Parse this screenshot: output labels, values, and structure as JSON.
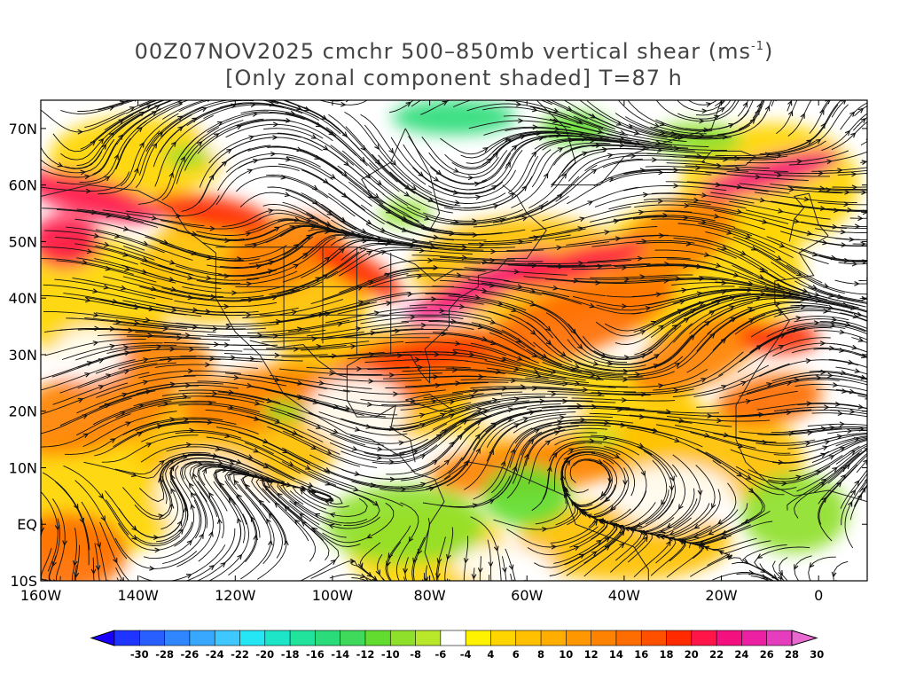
{
  "title": {
    "line1_main": "00Z07NOV2025 cmchr 500–850mb vertical shear (ms",
    "line1_sup": "-1",
    "line1_end": ")",
    "line2": "[Only zonal component shaded] T=87 h"
  },
  "map": {
    "lon_range": [
      -160,
      10
    ],
    "lat_range": [
      -10,
      75
    ],
    "lat_ticks": [
      {
        "value": 70,
        "label": "70N"
      },
      {
        "value": 60,
        "label": "60N"
      },
      {
        "value": 50,
        "label": "50N"
      },
      {
        "value": 40,
        "label": "40N"
      },
      {
        "value": 30,
        "label": "30N"
      },
      {
        "value": 20,
        "label": "20N"
      },
      {
        "value": 10,
        "label": "10N"
      },
      {
        "value": 0,
        "label": "EQ"
      },
      {
        "value": -10,
        "label": "10S"
      }
    ],
    "lon_ticks": [
      {
        "value": -160,
        "label": "160W"
      },
      {
        "value": -140,
        "label": "140W"
      },
      {
        "value": -120,
        "label": "120W"
      },
      {
        "value": -100,
        "label": "100W"
      },
      {
        "value": -80,
        "label": "80W"
      },
      {
        "value": -60,
        "label": "60W"
      },
      {
        "value": -40,
        "label": "40W"
      },
      {
        "value": -20,
        "label": "20W"
      },
      {
        "value": 0,
        "label": "0"
      }
    ],
    "shading": "zonal component of 500-850mb vertical shear",
    "overlay": "vertical shear streamlines"
  },
  "colorbar": {
    "labels": [
      "-30",
      "-28",
      "-26",
      "-24",
      "-22",
      "-20",
      "-18",
      "-16",
      "-14",
      "-12",
      "-10",
      "-8",
      "-6",
      "-4",
      "4",
      "6",
      "8",
      "10",
      "12",
      "14",
      "16",
      "18",
      "20",
      "22",
      "24",
      "26",
      "28",
      "30"
    ],
    "colors": [
      "#1f34ff",
      "#2a5fff",
      "#2f86ff",
      "#38a8ff",
      "#3fc8ff",
      "#25e6f5",
      "#1ce5c8",
      "#22e39c",
      "#2bdc7a",
      "#3fd95c",
      "#62dc2e",
      "#8fe02a",
      "#b9e82a",
      "#ffffff",
      "#fff200",
      "#ffd500",
      "#ffc000",
      "#ffae00",
      "#ff9800",
      "#ff8200",
      "#ff6c00",
      "#ff5000",
      "#ff2a00",
      "#ff1548",
      "#f5107f",
      "#ec20a2",
      "#e63cbe"
    ],
    "under_color": "#1a00ff",
    "over_color": "#e86ad0"
  }
}
